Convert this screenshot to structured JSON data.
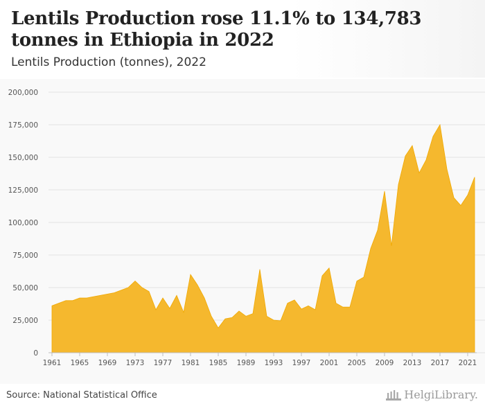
{
  "header": {
    "title": "Lentils Production rose 11.1% to 134,783 tonnes in Ethiopia in 2022",
    "subtitle": "Lentils Production (tonnes), 2022"
  },
  "footer": {
    "source": "Source: National Statistical Office",
    "logo_text": "HelgiLibrary."
  },
  "colors": {
    "area": "#f5b82e",
    "area_edge": "#f0a800",
    "grid": "#e4e4e4"
  },
  "chart_data": {
    "type": "area",
    "xlabel": "",
    "ylabel": "",
    "ylim": [
      0,
      200000
    ],
    "yticks": [
      0,
      25000,
      50000,
      75000,
      100000,
      125000,
      150000,
      175000,
      200000
    ],
    "ytick_labels": [
      "0",
      "25,000",
      "50,000",
      "75,000",
      "100,000",
      "125,000",
      "150,000",
      "175,000",
      "200,000"
    ],
    "xticks": [
      1961,
      1965,
      1969,
      1973,
      1977,
      1981,
      1985,
      1989,
      1993,
      1997,
      2001,
      2005,
      2009,
      2013,
      2017,
      2021
    ],
    "grid": true,
    "x": [
      1961,
      1962,
      1963,
      1964,
      1965,
      1966,
      1967,
      1968,
      1969,
      1970,
      1971,
      1972,
      1973,
      1974,
      1975,
      1976,
      1977,
      1978,
      1979,
      1980,
      1981,
      1982,
      1983,
      1984,
      1985,
      1986,
      1987,
      1988,
      1989,
      1990,
      1991,
      1992,
      1993,
      1994,
      1995,
      1996,
      1997,
      1998,
      1999,
      2000,
      2001,
      2002,
      2003,
      2004,
      2005,
      2006,
      2007,
      2008,
      2009,
      2010,
      2011,
      2012,
      2013,
      2014,
      2015,
      2016,
      2017,
      2018,
      2019,
      2020,
      2021,
      2022
    ],
    "series": [
      {
        "values": [
          36000,
          38000,
          40000,
          40000,
          42000,
          42000,
          43000,
          44000,
          45000,
          46000,
          48000,
          50000,
          55000,
          50000,
          47000,
          33000,
          42000,
          34000,
          44000,
          31000,
          60000,
          52000,
          42000,
          28000,
          19000,
          26000,
          27000,
          32000,
          28000,
          30000,
          64000,
          28000,
          25000,
          24500,
          38000,
          40500,
          33500,
          36000,
          33000,
          59000,
          65000,
          38000,
          35000,
          35000,
          55000,
          58000,
          80000,
          94000,
          124000,
          82000,
          129000,
          151000,
          159000,
          138000,
          148000,
          166000,
          175000,
          141000,
          119000,
          113000,
          121000,
          134783
        ]
      }
    ]
  }
}
